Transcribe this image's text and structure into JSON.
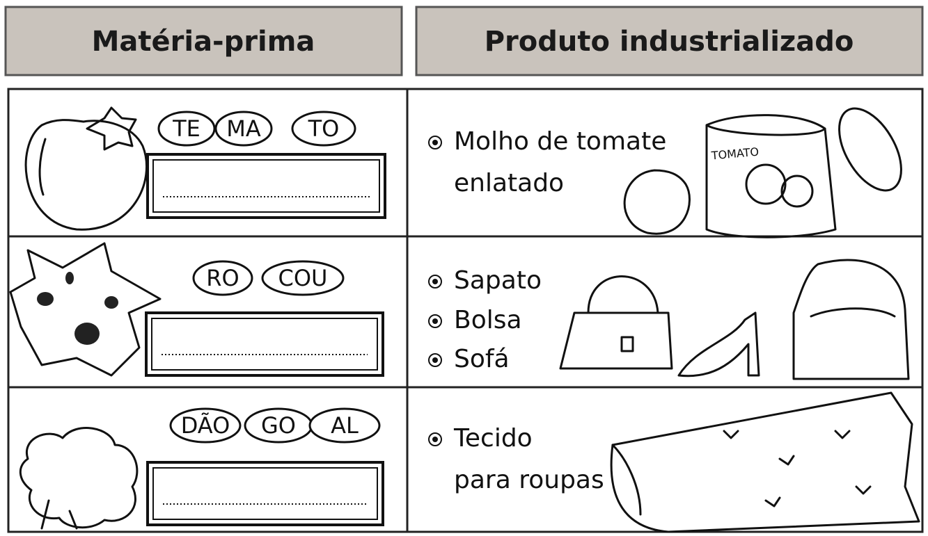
{
  "header": {
    "left": "Matéria-prima",
    "right": "Produto industrializado"
  },
  "rows": [
    {
      "syllables": [
        "TE",
        "MA",
        "TO"
      ],
      "product_lines": [
        "Molho de tomate",
        "enlatado"
      ],
      "can_label": "TOMATO"
    },
    {
      "syllables": [
        "RO",
        "COU"
      ],
      "product_lines": [
        "Sapato",
        "Bolsa",
        "Sofá"
      ]
    },
    {
      "syllables": [
        "DÃO",
        "GO",
        "AL"
      ],
      "product_lines": [
        "Tecido",
        "para roupas"
      ]
    }
  ]
}
